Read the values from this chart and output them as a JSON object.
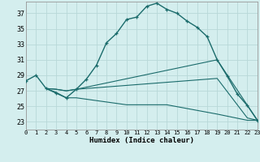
{
  "xlabel": "Humidex (Indice chaleur)",
  "bg_color": "#d4eeee",
  "grid_color": "#b8d8d8",
  "line_color": "#1a6b6b",
  "xlim": [
    0,
    23
  ],
  "ylim": [
    22.0,
    38.5
  ],
  "xticks": [
    0,
    1,
    2,
    3,
    4,
    5,
    6,
    7,
    8,
    9,
    10,
    11,
    12,
    13,
    14,
    15,
    16,
    17,
    18,
    19,
    20,
    21,
    22,
    23
  ],
  "yticks": [
    23,
    25,
    27,
    29,
    31,
    33,
    35,
    37
  ],
  "series1_x": [
    0,
    1,
    2,
    3,
    4,
    5,
    6,
    7,
    8,
    9,
    10,
    11,
    12,
    13,
    14,
    15,
    16,
    17,
    18,
    19,
    20,
    21,
    22,
    23
  ],
  "series1_y": [
    28.3,
    29.0,
    27.3,
    26.7,
    26.1,
    27.2,
    28.5,
    30.3,
    33.2,
    34.4,
    36.2,
    36.5,
    37.9,
    38.3,
    37.5,
    37.0,
    36.0,
    35.2,
    34.0,
    31.0,
    28.9,
    26.6,
    25.1,
    23.2
  ],
  "series2_x": [
    2,
    3,
    4,
    5,
    19,
    23
  ],
  "series2_y": [
    27.3,
    27.2,
    27.0,
    27.2,
    31.0,
    23.2
  ],
  "series3_x": [
    2,
    3,
    4,
    5,
    19,
    22,
    23
  ],
  "series3_y": [
    27.3,
    27.2,
    27.0,
    27.2,
    28.6,
    23.5,
    23.2
  ],
  "series4_x": [
    2,
    3,
    4,
    5,
    10,
    14,
    19,
    22,
    23
  ],
  "series4_y": [
    27.3,
    26.8,
    26.1,
    26.1,
    25.2,
    25.2,
    24.0,
    23.2,
    23.2
  ]
}
